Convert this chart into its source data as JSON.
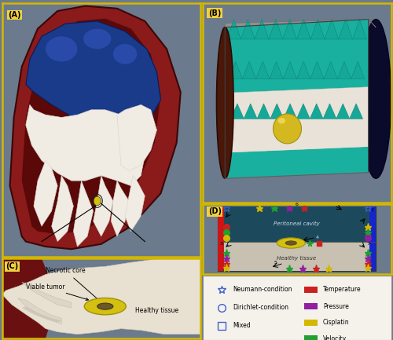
{
  "bg_color": "#6b7a8d",
  "figsize": [
    5.0,
    4.33
  ],
  "dpi": 100,
  "panels": {
    "A": {
      "label": "(A)",
      "border": "#d4b800",
      "bg": "#6b7a8d"
    },
    "B": {
      "label": "(B)",
      "border": "#d4b800",
      "bg": "#6b7a8d"
    },
    "C": {
      "label": "(C)",
      "border": "#d4b800",
      "bg": "#6b7a8d"
    },
    "D": {
      "label": "(D)",
      "border": "#d4b800",
      "bg": "#6b7a8d"
    }
  },
  "panel_D": {
    "cavity_color": "#1c4a5c",
    "tissue_color": "#c8c0b0",
    "left_bar": "#cc1515",
    "right_bar": "#1525cc",
    "c_neumann": "#4060cc",
    "c_temp": "#cc2020",
    "c_pressure": "#9020a0",
    "c_cisplatin": "#d4b800",
    "c_velocity": "#20a030"
  },
  "legend": {
    "items_left": [
      "Neumann-condition",
      "Dirichlet-condition",
      "Mixed"
    ],
    "items_right": [
      "Temperature",
      "Pressure",
      "Cisplatin",
      "Velocity"
    ],
    "colors_right": [
      "#cc2020",
      "#9020a0",
      "#d4b800",
      "#20a030"
    ]
  }
}
